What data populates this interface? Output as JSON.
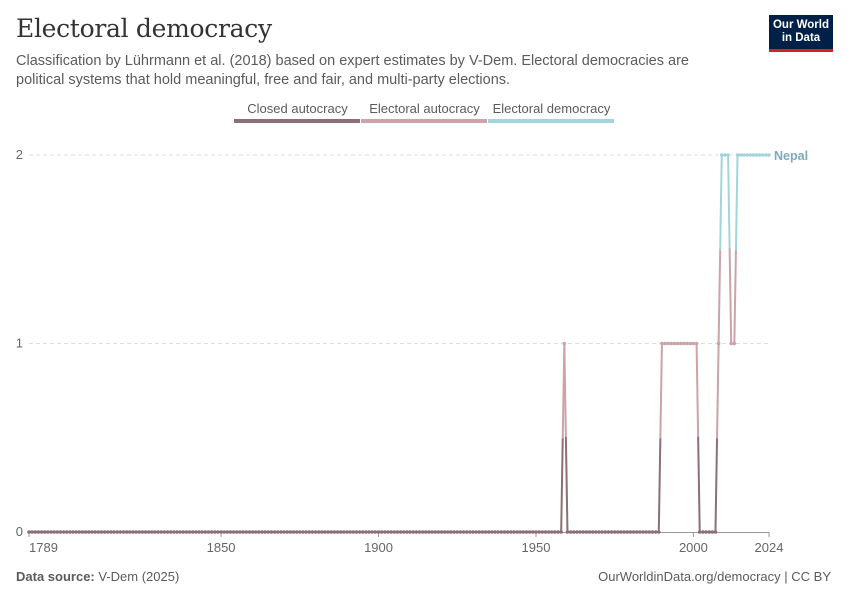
{
  "header": {
    "title": "Electoral democracy",
    "subtitle": "Classification by Lührmann et al. (2018) based on expert estimates by V-Dem. Electoral democracies are political systems that hold meaningful, free and fair, and multi-party elections.",
    "logo_line1": "Our World",
    "logo_line2": "in Data"
  },
  "footer": {
    "source_label": "Data source:",
    "source_value": "V-Dem (2025)",
    "url": "OurWorldinData.org/democracy | CC BY"
  },
  "colors": {
    "closed_autocracy": "#8c6f74",
    "electoral_autocracy": "#cba3a8",
    "electoral_democracy": "#a4d4db",
    "grid": "#dddddd",
    "axis": "#999999",
    "nepal_label": "#7fa9bc"
  },
  "chart_data": {
    "type": "line",
    "title": "Electoral democracy",
    "xlabel": "",
    "ylabel": "",
    "xlim": [
      1789,
      2024
    ],
    "ylim": [
      0,
      2
    ],
    "x_ticks": [
      1789,
      1850,
      1900,
      1950,
      2000,
      2024
    ],
    "y_ticks": [
      0,
      1,
      2
    ],
    "grid": true,
    "legend_position": "top-center",
    "legend": [
      "Closed autocracy",
      "Electoral autocracy",
      "Electoral democracy"
    ],
    "category_values": {
      "Closed autocracy": 0,
      "Electoral autocracy": 1,
      "Electoral democracy": 2
    },
    "series": [
      {
        "name": "Nepal",
        "segments": [
          {
            "from": 1789,
            "to": 1958,
            "value": 0
          },
          {
            "from": 1959,
            "to": 1959,
            "value": 1
          },
          {
            "from": 1960,
            "to": 1989,
            "value": 0
          },
          {
            "from": 1990,
            "to": 2001,
            "value": 1
          },
          {
            "from": 2002,
            "to": 2007,
            "value": 0
          },
          {
            "from": 2008,
            "to": 2008,
            "value": 1
          },
          {
            "from": 2009,
            "to": 2011,
            "value": 2
          },
          {
            "from": 2012,
            "to": 2013,
            "value": 1
          },
          {
            "from": 2014,
            "to": 2024,
            "value": 2
          }
        ]
      }
    ]
  }
}
